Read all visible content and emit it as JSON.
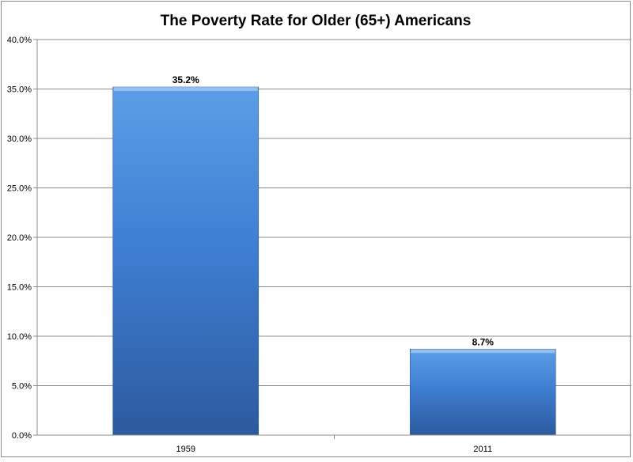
{
  "chart_data": {
    "type": "bar",
    "title": "The Poverty Rate for Older (65+) Americans",
    "categories": [
      "1959",
      "2011"
    ],
    "values": [
      35.2,
      8.7
    ],
    "data_labels": [
      "35.2%",
      "8.7%"
    ],
    "ylim": [
      0,
      40
    ],
    "ytick_values": [
      0,
      5,
      10,
      15,
      20,
      25,
      30,
      35,
      40
    ],
    "yticks": [
      "0.0%",
      "5.0%",
      "10.0%",
      "15.0%",
      "20.0%",
      "25.0%",
      "30.0%",
      "35.0%",
      "40.0%"
    ],
    "xlabel": "",
    "ylabel": "",
    "grid": true,
    "legend": "none"
  },
  "colors": {
    "bar_top": "#5c9ee6",
    "bar_mid": "#3f7fd3",
    "bar_bottom": "#2c5a9e",
    "gridline": "#8c8c8c",
    "axis": "#8c8c8c",
    "text": "#000000"
  }
}
